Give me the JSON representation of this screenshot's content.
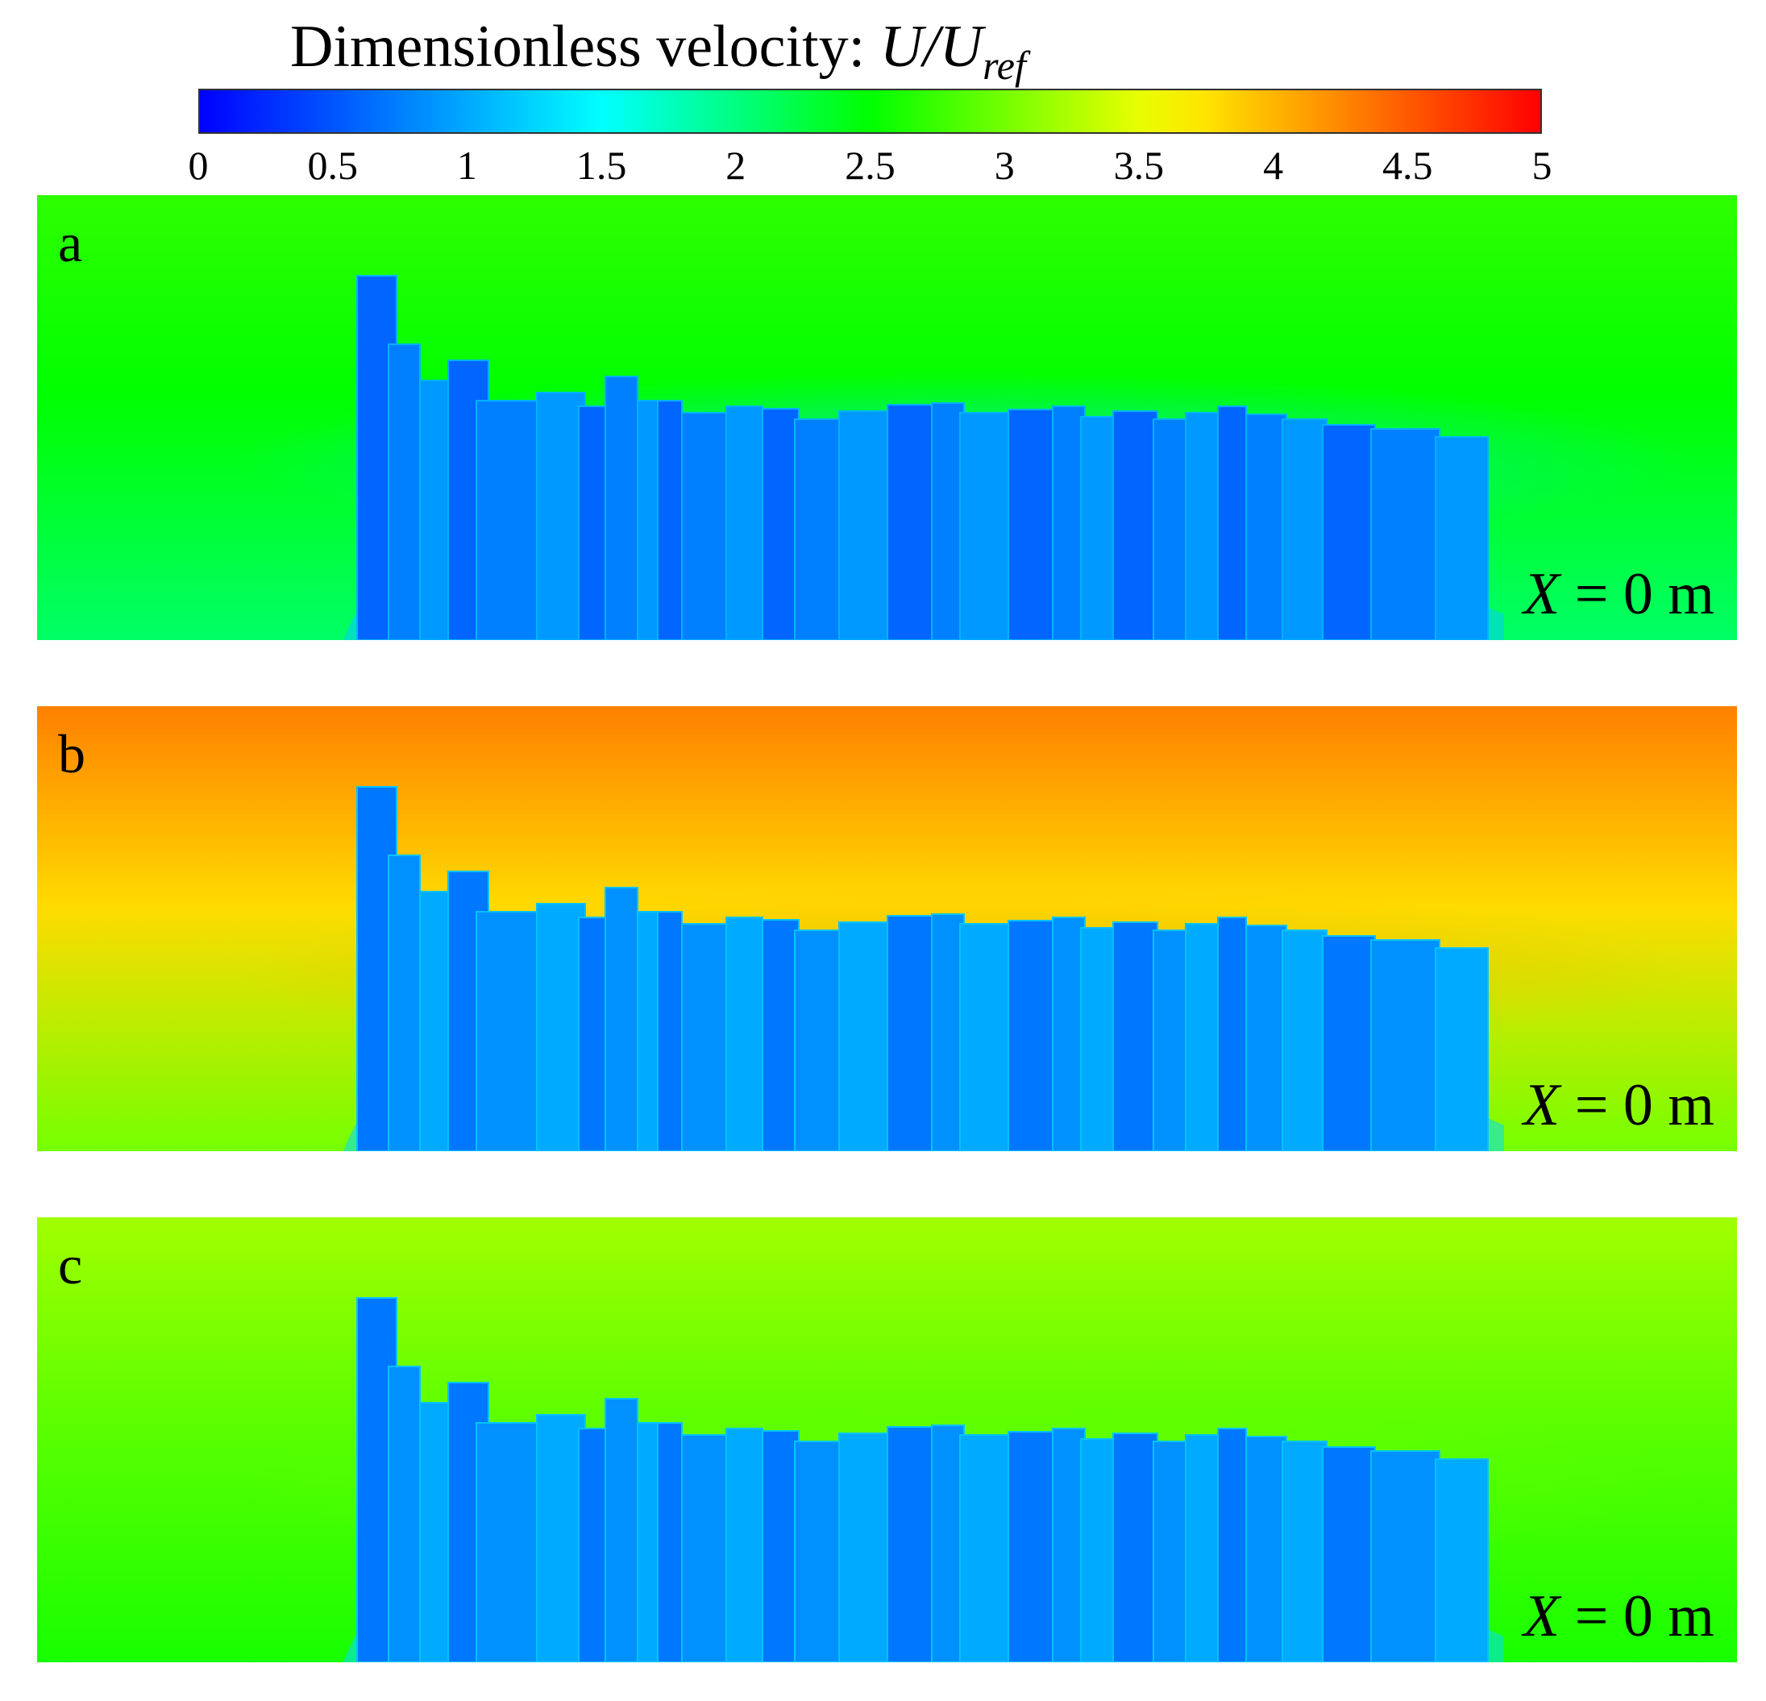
{
  "chart_data": {
    "type": "heatmap",
    "title": "Dimensionless velocity: U/U",
    "title_var": "U/U",
    "title_sub": "ref",
    "colorbar": {
      "min": 0,
      "max": 5,
      "colormap": "rainbow",
      "ticks": [
        "0",
        "0.5",
        "1",
        "1.5",
        "2",
        "2.5",
        "3",
        "3.5",
        "4",
        "4.5",
        "5"
      ],
      "tick_values": [
        0,
        0.5,
        1,
        1.5,
        2,
        2.5,
        3,
        3.5,
        4,
        4.5,
        5
      ]
    },
    "panels": [
      {
        "label": "a",
        "position_var": "X",
        "position_text": " = 0 m",
        "top_value": 2.7,
        "mid_value": 2.5,
        "near_ground_value": 2.1,
        "obstacle_value": 0.6,
        "highlight_value": 1.3
      },
      {
        "label": "b",
        "position_var": "X",
        "position_text": " = 0 m",
        "top_value": 4.3,
        "mid_value": 3.8,
        "near_ground_value": 3.0,
        "obstacle_value": 0.7,
        "highlight_value": 4.1
      },
      {
        "label": "c",
        "position_var": "X",
        "position_text": " = 0 m",
        "top_value": 3.2,
        "mid_value": 2.9,
        "near_ground_value": 2.6,
        "obstacle_value": 0.7,
        "highlight_value": 3.0
      }
    ]
  }
}
